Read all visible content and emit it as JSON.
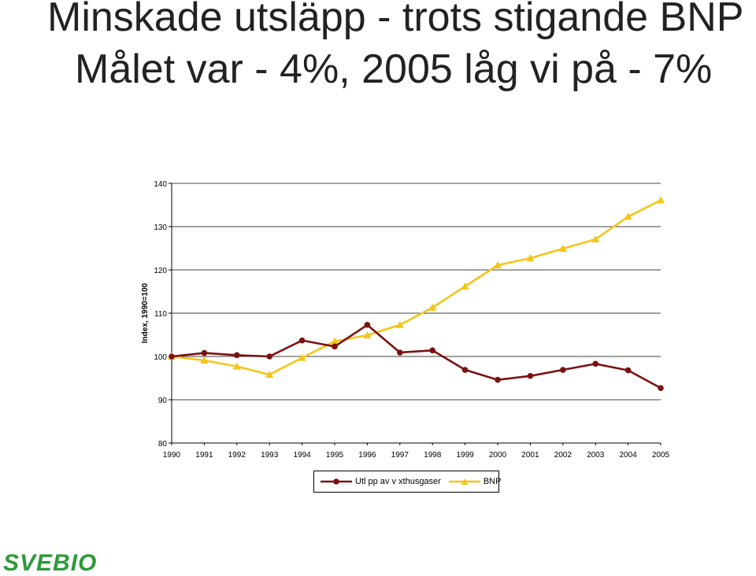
{
  "slide": {
    "title_line1": "Minskade utsläpp - trots stigande BNP",
    "title_line2": "Målet var - 4%, 2005 låg vi på - 7%",
    "logo_text": "SVEBIO"
  },
  "colors": {
    "emissions": "#7a1212",
    "gdp": "#f5c518",
    "logo": "#2e9a3a"
  },
  "chart_data": {
    "type": "line",
    "ylabel": "Index, 1990=100",
    "xlabel": "",
    "ylim": [
      80,
      140
    ],
    "yticks": [
      80,
      90,
      100,
      110,
      120,
      130,
      140
    ],
    "grid": true,
    "legend_position": "bottom",
    "x": [
      "1990",
      "1991",
      "1992",
      "1993",
      "1994",
      "1995",
      "1996",
      "1997",
      "1998",
      "1999",
      "2000",
      "2001",
      "2002",
      "2003",
      "2004",
      "2005"
    ],
    "series": [
      {
        "name": "Utl pp av v xthusgaser",
        "marker": "circle",
        "values": [
          100,
          100.8,
          100.3,
          100,
          103.7,
          102.3,
          107.3,
          100.9,
          101.4,
          96.9,
          94.6,
          95.5,
          96.9,
          98.3,
          96.8,
          92.7
        ]
      },
      {
        "name": "BNP",
        "marker": "triangle",
        "values": [
          100,
          99.1,
          97.7,
          95.8,
          99.7,
          103.5,
          104.9,
          107.3,
          111.3,
          116.2,
          121.1,
          122.7,
          124.9,
          127.1,
          132.3,
          136.1
        ]
      }
    ]
  }
}
